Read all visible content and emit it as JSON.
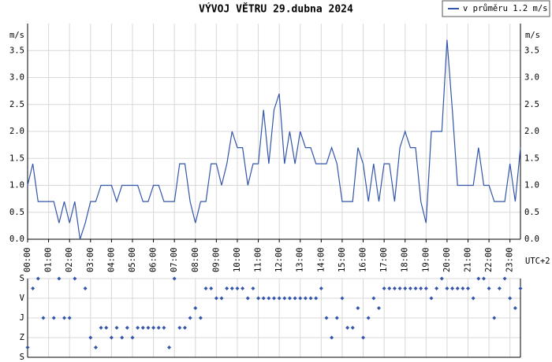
{
  "chart_data": [
    {
      "type": "line",
      "title": "VÝVOJ VĚTRU  29.dubna 2024",
      "y_label": "m/s",
      "x_label": "UTC+2",
      "x": [
        0,
        0.25,
        0.5,
        0.75,
        1,
        1.25,
        1.5,
        1.75,
        2,
        2.25,
        2.5,
        2.75,
        3,
        3.25,
        3.5,
        3.75,
        4,
        4.25,
        4.5,
        4.75,
        5,
        5.25,
        5.5,
        5.75,
        6,
        6.25,
        6.5,
        6.75,
        7,
        7.25,
        7.5,
        7.75,
        8,
        8.25,
        8.5,
        8.75,
        9,
        9.25,
        9.5,
        9.75,
        10,
        10.25,
        10.5,
        10.75,
        11,
        11.25,
        11.5,
        11.75,
        12,
        12.25,
        12.5,
        12.75,
        13,
        13.25,
        13.5,
        13.75,
        14,
        14.25,
        14.5,
        14.75,
        15,
        15.25,
        15.5,
        15.75,
        16,
        16.25,
        16.5,
        16.75,
        17,
        17.25,
        17.5,
        17.75,
        18,
        18.25,
        18.5,
        18.75,
        19,
        19.25,
        19.5,
        19.75,
        20,
        20.25,
        20.5,
        20.75,
        21,
        21.25,
        21.5,
        21.75,
        22,
        22.25,
        22.5,
        22.75,
        23,
        23.25,
        23.5
      ],
      "series": [
        {
          "name": "v průměru 1.2 m/s",
          "color": "#3355aa",
          "values": [
            1.0,
            1.4,
            0.7,
            0.7,
            0.7,
            0.7,
            0.3,
            0.7,
            0.3,
            0.7,
            0.0,
            0.3,
            0.7,
            0.7,
            1.0,
            1.0,
            1.0,
            0.7,
            1.0,
            1.0,
            1.0,
            1.0,
            0.7,
            0.7,
            1.0,
            1.0,
            0.7,
            0.7,
            0.7,
            1.4,
            1.4,
            0.7,
            0.3,
            0.7,
            0.7,
            1.4,
            1.4,
            1.0,
            1.4,
            2.0,
            1.7,
            1.7,
            1.0,
            1.4,
            1.4,
            2.4,
            1.4,
            2.4,
            2.7,
            1.4,
            2.0,
            1.4,
            2.0,
            1.7,
            1.7,
            1.4,
            1.4,
            1.4,
            1.7,
            1.4,
            0.7,
            0.7,
            0.7,
            1.7,
            1.4,
            0.7,
            1.4,
            0.7,
            1.4,
            1.4,
            0.7,
            1.7,
            2.0,
            1.7,
            1.7,
            0.7,
            0.3,
            2.0,
            2.0,
            2.0,
            3.7,
            2.4,
            1.0,
            1.0,
            1.0,
            1.0,
            1.7,
            1.0,
            1.0,
            0.7,
            0.7,
            0.7,
            1.4,
            0.7,
            1.7
          ]
        }
      ],
      "xlim": [
        0,
        23.5
      ],
      "xticks": [
        {
          "value": 0,
          "label": "00:00"
        },
        {
          "value": 1,
          "label": "01:00"
        },
        {
          "value": 2,
          "label": "02:00"
        },
        {
          "value": 3,
          "label": "03:00"
        },
        {
          "value": 4,
          "label": "04:00"
        },
        {
          "value": 5,
          "label": "05:00"
        },
        {
          "value": 6,
          "label": "06:00"
        },
        {
          "value": 7,
          "label": "07:00"
        },
        {
          "value": 8,
          "label": "08:00"
        },
        {
          "value": 9,
          "label": "09:00"
        },
        {
          "value": 10,
          "label": "10:00"
        },
        {
          "value": 11,
          "label": "11:00"
        },
        {
          "value": 12,
          "label": "12:00"
        },
        {
          "value": 13,
          "label": "13:00"
        },
        {
          "value": 14,
          "label": "14:00"
        },
        {
          "value": 15,
          "label": "15:00"
        },
        {
          "value": 16,
          "label": "16:00"
        },
        {
          "value": 17,
          "label": "17:00"
        },
        {
          "value": 18,
          "label": "18:00"
        },
        {
          "value": 19,
          "label": "19:00"
        },
        {
          "value": 20,
          "label": "20:00"
        },
        {
          "value": 21,
          "label": "21:00"
        },
        {
          "value": 22,
          "label": "22:00"
        },
        {
          "value": 23,
          "label": "23:00"
        }
      ],
      "ylim": [
        0,
        4
      ],
      "yticks": [
        {
          "value": 0,
          "label": "0.0"
        },
        {
          "value": 0.5,
          "label": "0.5"
        },
        {
          "value": 1,
          "label": "1.0"
        },
        {
          "value": 1.5,
          "label": "1.5"
        },
        {
          "value": 2,
          "label": "2.0"
        },
        {
          "value": 2.5,
          "label": "2.5"
        },
        {
          "value": 3,
          "label": "3.0"
        },
        {
          "value": 3.5,
          "label": "3.5"
        }
      ],
      "grid": true,
      "legend": "top-right"
    },
    {
      "type": "scatter",
      "x": [
        0,
        0.25,
        0.5,
        0.75,
        1,
        1.25,
        1.5,
        1.75,
        2,
        2.25,
        2.5,
        2.75,
        3,
        3.25,
        3.5,
        3.75,
        4,
        4.25,
        4.5,
        4.75,
        5,
        5.25,
        5.5,
        5.75,
        6,
        6.25,
        6.5,
        6.75,
        7,
        7.25,
        7.5,
        7.75,
        8,
        8.25,
        8.5,
        8.75,
        9,
        9.25,
        9.5,
        9.75,
        10,
        10.25,
        10.5,
        10.75,
        11,
        11.25,
        11.5,
        11.75,
        12,
        12.25,
        12.5,
        12.75,
        13,
        13.25,
        13.5,
        13.75,
        14,
        14.25,
        14.5,
        14.75,
        15,
        15.25,
        15.5,
        15.75,
        16,
        16.25,
        16.5,
        16.75,
        17,
        17.25,
        17.5,
        17.75,
        18,
        18.25,
        18.5,
        18.75,
        19,
        19.25,
        19.5,
        19.75,
        20,
        20.25,
        20.5,
        20.75,
        21,
        21.25,
        21.5,
        21.75,
        22,
        22.25,
        22.5,
        22.75,
        23,
        23.25,
        23.5
      ],
      "color": "#3355aa",
      "values": [
        315,
        45,
        0,
        180,
        null,
        180,
        0,
        180,
        180,
        0,
        null,
        45,
        270,
        315,
        225,
        225,
        270,
        225,
        270,
        225,
        270,
        225,
        225,
        225,
        225,
        225,
        225,
        315,
        0,
        225,
        225,
        180,
        135,
        180,
        45,
        45,
        90,
        90,
        45,
        45,
        45,
        45,
        90,
        45,
        90,
        90,
        90,
        90,
        90,
        90,
        90,
        90,
        90,
        90,
        90,
        90,
        45,
        180,
        270,
        180,
        90,
        225,
        225,
        135,
        270,
        180,
        90,
        135,
        45,
        45,
        45,
        45,
        45,
        45,
        45,
        45,
        45,
        90,
        45,
        0,
        45,
        45,
        45,
        45,
        45,
        90,
        0,
        0,
        45,
        180,
        45,
        0,
        90,
        135,
        45
      ],
      "xlim": [
        0,
        23.5
      ],
      "ylim": [
        0,
        360
      ],
      "inverted": true,
      "yticks": [
        {
          "value": 0,
          "label": "S"
        },
        {
          "value": 90,
          "label": "V"
        },
        {
          "value": 180,
          "label": "J"
        },
        {
          "value": 270,
          "label": "Z"
        },
        {
          "value": 360,
          "label": "S"
        }
      ],
      "grid": true
    }
  ]
}
